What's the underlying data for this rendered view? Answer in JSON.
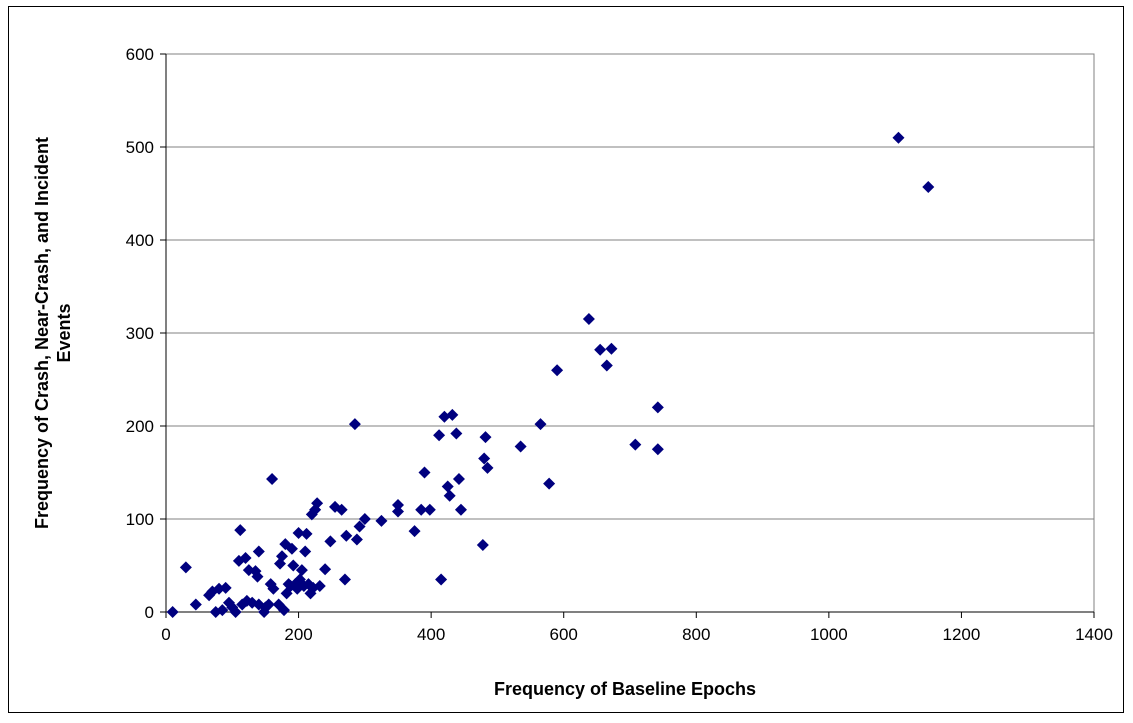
{
  "chart_data": {
    "type": "scatter",
    "title": "",
    "xlabel": "Frequency of Baseline Epochs",
    "ylabel_lines": [
      "Frequency of Crash, Near-Crash, and Incident",
      "Events"
    ],
    "xlim": [
      0,
      1400
    ],
    "ylim": [
      0,
      600
    ],
    "xticks": [
      0,
      200,
      400,
      600,
      800,
      1000,
      1200,
      1400
    ],
    "yticks": [
      0,
      100,
      200,
      300,
      400,
      500,
      600
    ],
    "grid": "horizontal",
    "legend": "none",
    "marker_color": "#00007f",
    "series": [
      {
        "points": [
          [
            10,
            0
          ],
          [
            30,
            48
          ],
          [
            45,
            8
          ],
          [
            65,
            18
          ],
          [
            70,
            22
          ],
          [
            75,
            0
          ],
          [
            80,
            25
          ],
          [
            85,
            2
          ],
          [
            90,
            26
          ],
          [
            95,
            10
          ],
          [
            100,
            5
          ],
          [
            105,
            0
          ],
          [
            110,
            55
          ],
          [
            112,
            88
          ],
          [
            115,
            8
          ],
          [
            120,
            58
          ],
          [
            122,
            12
          ],
          [
            125,
            45
          ],
          [
            130,
            10
          ],
          [
            135,
            44
          ],
          [
            138,
            38
          ],
          [
            140,
            65
          ],
          [
            140,
            8
          ],
          [
            148,
            0
          ],
          [
            150,
            5
          ],
          [
            155,
            8
          ],
          [
            158,
            30
          ],
          [
            160,
            143
          ],
          [
            162,
            25
          ],
          [
            170,
            8
          ],
          [
            172,
            52
          ],
          [
            175,
            60
          ],
          [
            178,
            2
          ],
          [
            180,
            73
          ],
          [
            182,
            20
          ],
          [
            185,
            30
          ],
          [
            188,
            28
          ],
          [
            190,
            68
          ],
          [
            192,
            50
          ],
          [
            195,
            30
          ],
          [
            198,
            25
          ],
          [
            200,
            85
          ],
          [
            202,
            35
          ],
          [
            205,
            45
          ],
          [
            208,
            28
          ],
          [
            210,
            65
          ],
          [
            212,
            84
          ],
          [
            215,
            30
          ],
          [
            218,
            20
          ],
          [
            220,
            105
          ],
          [
            222,
            26
          ],
          [
            225,
            110
          ],
          [
            228,
            117
          ],
          [
            232,
            28
          ],
          [
            240,
            46
          ],
          [
            248,
            76
          ],
          [
            255,
            113
          ],
          [
            265,
            110
          ],
          [
            270,
            35
          ],
          [
            272,
            82
          ],
          [
            285,
            202
          ],
          [
            288,
            78
          ],
          [
            292,
            92
          ],
          [
            300,
            100
          ],
          [
            325,
            98
          ],
          [
            350,
            115
          ],
          [
            350,
            108
          ],
          [
            375,
            87
          ],
          [
            385,
            110
          ],
          [
            390,
            150
          ],
          [
            398,
            110
          ],
          [
            412,
            190
          ],
          [
            415,
            35
          ],
          [
            420,
            210
          ],
          [
            425,
            135
          ],
          [
            428,
            125
          ],
          [
            432,
            212
          ],
          [
            438,
            192
          ],
          [
            442,
            143
          ],
          [
            445,
            110
          ],
          [
            478,
            72
          ],
          [
            480,
            165
          ],
          [
            482,
            188
          ],
          [
            485,
            155
          ],
          [
            535,
            178
          ],
          [
            565,
            202
          ],
          [
            578,
            138
          ],
          [
            590,
            260
          ],
          [
            638,
            315
          ],
          [
            655,
            282
          ],
          [
            665,
            265
          ],
          [
            672,
            283
          ],
          [
            708,
            180
          ],
          [
            742,
            220
          ],
          [
            742,
            175
          ],
          [
            1105,
            510
          ],
          [
            1150,
            457
          ]
        ]
      }
    ]
  }
}
